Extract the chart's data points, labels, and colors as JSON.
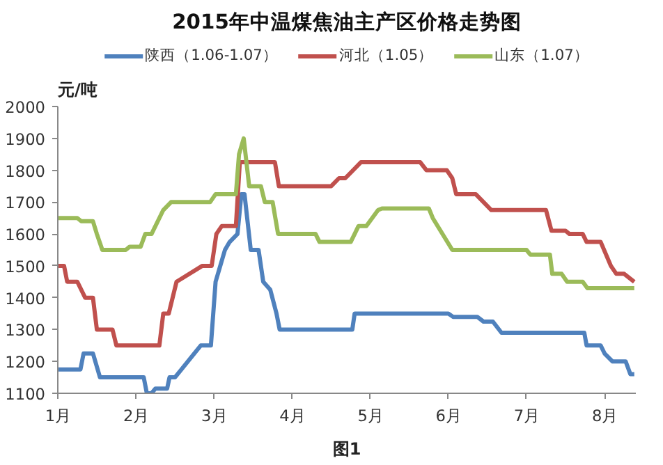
{
  "chart_data": {
    "type": "line",
    "title": "2015年中温煤焦油主产区价格走势图",
    "ylabel": "元/吨",
    "annotations": [
      "图1"
    ],
    "xlim": [
      1,
      8.4
    ],
    "xticks": [
      {
        "value": 1,
        "label": "1月"
      },
      {
        "value": 2,
        "label": "2月"
      },
      {
        "value": 3,
        "label": "3月"
      },
      {
        "value": 4,
        "label": "4月"
      },
      {
        "value": 5,
        "label": "5月"
      },
      {
        "value": 6,
        "label": "6月"
      },
      {
        "value": 7,
        "label": "7月"
      },
      {
        "value": 8,
        "label": "8月"
      }
    ],
    "ylim": [
      1100,
      2000
    ],
    "yticks": [
      1100,
      1200,
      1300,
      1400,
      1500,
      1600,
      1700,
      1800,
      1900,
      2000
    ],
    "grid": false,
    "legend": "top",
    "marker": "none",
    "line_style": "solid",
    "series": [
      {
        "name": "陕西（1.06-1.07）",
        "color": "#4f81bd",
        "x": [
          1,
          1.29,
          1.33,
          1.45,
          1.54,
          2.1,
          2.14,
          2.2,
          2.25,
          2.4,
          2.43,
          2.5,
          2.83,
          2.96,
          3.02,
          3.08,
          3.14,
          3.2,
          3.3,
          3.35,
          3.39,
          3.47,
          3.57,
          3.63,
          3.72,
          3.8,
          3.84,
          4.77,
          4.8,
          6.0,
          6.06,
          6.37,
          6.45,
          6.57,
          6.68,
          7.74,
          7.77,
          7.95,
          8.0,
          8.1,
          8.27,
          8.33,
          8.38
        ],
        "values": [
          1175,
          1175,
          1225,
          1225,
          1150,
          1150,
          1100,
          1100,
          1115,
          1115,
          1150,
          1150,
          1250,
          1250,
          1450,
          1500,
          1550,
          1575,
          1600,
          1725,
          1725,
          1550,
          1550,
          1450,
          1425,
          1350,
          1300,
          1300,
          1350,
          1350,
          1340,
          1340,
          1325,
          1325,
          1290,
          1290,
          1250,
          1250,
          1225,
          1200,
          1200,
          1160,
          1160
        ]
      },
      {
        "name": "河北（1.05）",
        "color": "#c0504d",
        "x": [
          1,
          1.08,
          1.12,
          1.25,
          1.35,
          1.45,
          1.5,
          1.7,
          1.75,
          2.3,
          2.35,
          2.42,
          2.52,
          2.85,
          2.97,
          3.03,
          3.1,
          3.28,
          3.33,
          3.78,
          3.83,
          4.5,
          4.6,
          4.68,
          4.88,
          5.64,
          5.72,
          5.98,
          6.05,
          6.1,
          6.35,
          6.45,
          6.55,
          7.25,
          7.32,
          7.5,
          7.55,
          7.72,
          7.77,
          7.95,
          8.08,
          8.15,
          8.25,
          8.38
        ],
        "values": [
          1500,
          1500,
          1450,
          1450,
          1400,
          1400,
          1300,
          1300,
          1250,
          1250,
          1350,
          1350,
          1450,
          1500,
          1500,
          1600,
          1625,
          1625,
          1825,
          1825,
          1750,
          1750,
          1775,
          1775,
          1825,
          1825,
          1800,
          1800,
          1775,
          1725,
          1725,
          1700,
          1675,
          1675,
          1610,
          1610,
          1600,
          1600,
          1575,
          1575,
          1500,
          1475,
          1475,
          1450
        ]
      },
      {
        "name": "山东（1.07）",
        "color": "#9bbb59",
        "x": [
          1,
          1.25,
          1.3,
          1.45,
          1.5,
          1.57,
          1.87,
          1.92,
          2.06,
          2.12,
          2.2,
          2.3,
          2.35,
          2.45,
          2.95,
          3.02,
          3.28,
          3.32,
          3.38,
          3.45,
          3.6,
          3.65,
          3.75,
          3.82,
          4.3,
          4.35,
          4.75,
          4.85,
          4.95,
          5.1,
          5.15,
          5.75,
          5.8,
          6.05,
          7.0,
          7.05,
          7.3,
          7.33,
          7.45,
          7.52,
          7.72,
          7.78,
          8.38
        ],
        "values": [
          1650,
          1650,
          1640,
          1640,
          1600,
          1550,
          1550,
          1560,
          1560,
          1600,
          1600,
          1650,
          1675,
          1700,
          1700,
          1725,
          1725,
          1850,
          1900,
          1750,
          1750,
          1700,
          1700,
          1600,
          1600,
          1575,
          1575,
          1625,
          1625,
          1675,
          1680,
          1680,
          1650,
          1550,
          1550,
          1535,
          1535,
          1475,
          1475,
          1450,
          1450,
          1430,
          1430
        ]
      }
    ]
  }
}
